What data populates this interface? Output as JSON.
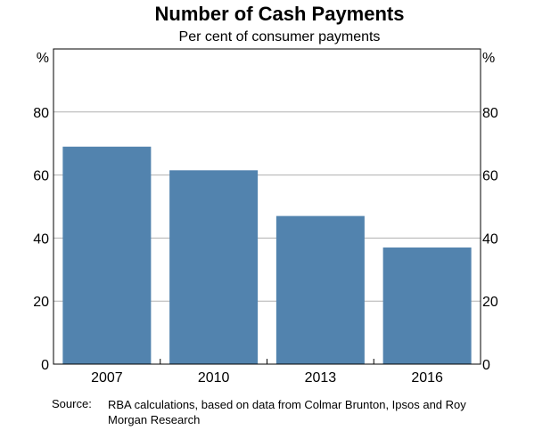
{
  "title": "Number of Cash Payments",
  "subtitle": "Per cent of consumer payments",
  "chart_data": {
    "type": "bar",
    "title": "Number of Cash Payments",
    "subtitle": "Per cent of consumer payments",
    "categories": [
      "2007",
      "2010",
      "2013",
      "2016"
    ],
    "values": [
      69,
      61.5,
      47,
      37
    ],
    "xlabel": "",
    "ylabel": "%",
    "ylabel_right": "%",
    "ylim": [
      0,
      100
    ],
    "yticks": [
      0,
      20,
      40,
      60,
      80
    ],
    "ytick_labels": [
      "0",
      "20",
      "40",
      "60",
      "80"
    ],
    "grid": true,
    "bar_color": "#5283ae",
    "grid_color": "#b0b0b0"
  },
  "source": {
    "label": "Source:",
    "text": "RBA calculations, based on data from Colmar Brunton, Ipsos and Roy Morgan Research"
  }
}
